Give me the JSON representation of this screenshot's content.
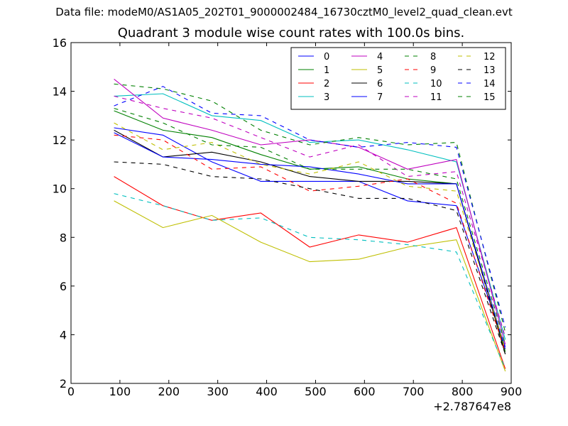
{
  "suptitle": "Data file: modeM0/AS1A05_202T01_9000002484_16730cztM0_level2_quad_clean.evt",
  "chart_data": {
    "type": "line",
    "title": "Quadrant 3 module wise count rates with 100.0s bins.",
    "xlabel": "",
    "ylabel": "",
    "x_offset_label": "+2.787647e8",
    "xlim": [
      0,
      900
    ],
    "ylim": [
      2,
      16
    ],
    "xticks": [
      0,
      100,
      200,
      300,
      400,
      500,
      600,
      700,
      800,
      900
    ],
    "yticks": [
      2,
      4,
      6,
      8,
      10,
      12,
      14,
      16
    ],
    "legend_position": "top-right",
    "x": [
      88,
      188,
      288,
      388,
      488,
      588,
      688,
      788,
      888
    ],
    "series": [
      {
        "name": "0",
        "color": "#0000ff",
        "style": "solid",
        "values": [
          12.5,
          12.2,
          11.1,
          10.3,
          10.3,
          10.3,
          9.5,
          9.3,
          3.5
        ]
      },
      {
        "name": "1",
        "color": "#008000",
        "style": "solid",
        "values": [
          13.2,
          12.4,
          12.1,
          11.4,
          10.8,
          10.9,
          10.4,
          10.2,
          3.3
        ]
      },
      {
        "name": "2",
        "color": "#ff0000",
        "style": "solid",
        "values": [
          10.5,
          9.3,
          8.7,
          9.0,
          7.6,
          8.1,
          7.8,
          8.4,
          2.6
        ]
      },
      {
        "name": "3",
        "color": "#00bfbf",
        "style": "solid",
        "values": [
          13.8,
          13.9,
          13.0,
          12.8,
          11.9,
          12.0,
          11.6,
          11.1,
          3.8
        ]
      },
      {
        "name": "4",
        "color": "#bf00bf",
        "style": "solid",
        "values": [
          14.5,
          12.9,
          12.4,
          11.8,
          12.0,
          11.7,
          10.8,
          11.2,
          3.6
        ]
      },
      {
        "name": "5",
        "color": "#bfbf00",
        "style": "solid",
        "values": [
          9.5,
          8.4,
          8.9,
          7.8,
          7.0,
          7.1,
          7.6,
          7.9,
          2.5
        ]
      },
      {
        "name": "6",
        "color": "#000000",
        "style": "solid",
        "values": [
          12.4,
          11.3,
          11.5,
          11.1,
          10.5,
          10.3,
          10.3,
          10.2,
          3.2
        ]
      },
      {
        "name": "7",
        "color": "#0000ff",
        "style": "solid",
        "values": [
          12.3,
          11.3,
          11.2,
          11.0,
          10.9,
          10.6,
          10.2,
          10.2,
          3.4
        ]
      },
      {
        "name": "8",
        "color": "#008000",
        "style": "dashed",
        "values": [
          14.3,
          14.1,
          13.6,
          12.4,
          11.8,
          12.1,
          11.8,
          11.9,
          4.1
        ]
      },
      {
        "name": "9",
        "color": "#ff0000",
        "style": "dashed",
        "values": [
          12.2,
          12.0,
          10.8,
          10.9,
          9.9,
          10.1,
          10.4,
          9.4,
          3.3
        ]
      },
      {
        "name": "10",
        "color": "#00bfbf",
        "style": "dashed",
        "values": [
          9.8,
          9.3,
          8.7,
          8.8,
          8.0,
          7.9,
          7.7,
          7.4,
          2.6
        ]
      },
      {
        "name": "11",
        "color": "#bf00bf",
        "style": "dashed",
        "values": [
          13.8,
          13.3,
          12.9,
          12.1,
          11.3,
          11.8,
          10.5,
          10.7,
          3.9
        ]
      },
      {
        "name": "12",
        "color": "#bfbf00",
        "style": "dashed",
        "values": [
          12.7,
          11.6,
          11.9,
          11.0,
          10.6,
          11.1,
          10.1,
          9.9,
          3.4
        ]
      },
      {
        "name": "13",
        "color": "#000000",
        "style": "dashed",
        "values": [
          11.1,
          11.0,
          10.5,
          10.4,
          10.0,
          9.6,
          9.6,
          9.1,
          3.2
        ]
      },
      {
        "name": "14",
        "color": "#0000ff",
        "style": "dashed",
        "values": [
          13.4,
          14.2,
          13.1,
          13.0,
          12.0,
          11.7,
          11.9,
          11.7,
          4.3
        ]
      },
      {
        "name": "15",
        "color": "#008000",
        "style": "dashed",
        "values": [
          13.3,
          12.7,
          11.8,
          11.7,
          10.8,
          10.8,
          10.8,
          10.4,
          3.6
        ]
      }
    ]
  }
}
